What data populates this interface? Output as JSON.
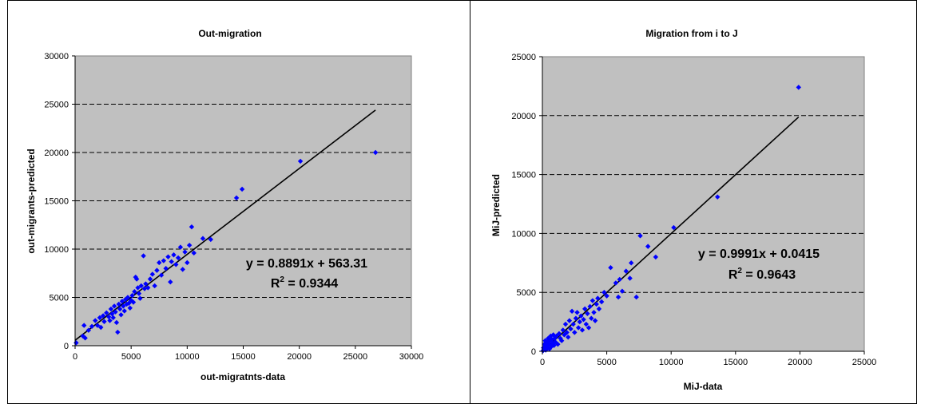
{
  "colors": {
    "plot_bg": "#c0c0c0",
    "point": "#0000ff",
    "trend": "#000000",
    "grid": "#000000"
  },
  "chart_data": [
    {
      "type": "scatter",
      "title": "Out-migration",
      "xlabel": "out-migratnts-data",
      "ylabel": "out-migrants-predicted",
      "xlim": [
        0,
        30000
      ],
      "ylim": [
        0,
        30000
      ],
      "xticks": [
        "0",
        "5000",
        "10000",
        "15000",
        "20000",
        "25000",
        "30000"
      ],
      "yticks": [
        "0",
        "5000",
        "10000",
        "15000",
        "20000",
        "25000",
        "30000"
      ],
      "grid": "horizontal-dashed",
      "trendline": {
        "slope": 0.8891,
        "intercept": 563.31,
        "x_range": [
          0,
          26800
        ]
      },
      "equation": "y = 0.8891x + 563.31",
      "r2_prefix": "R",
      "r2_sup": "2",
      "r2_value": " = 0.9344",
      "points": [
        [
          100,
          300
        ],
        [
          700,
          1000
        ],
        [
          900,
          800
        ],
        [
          800,
          2100
        ],
        [
          1200,
          1600
        ],
        [
          1500,
          2000
        ],
        [
          1800,
          2600
        ],
        [
          2000,
          2100
        ],
        [
          2200,
          2900
        ],
        [
          2300,
          1900
        ],
        [
          2500,
          3100
        ],
        [
          2600,
          2500
        ],
        [
          2800,
          3400
        ],
        [
          3000,
          3000
        ],
        [
          3100,
          2600
        ],
        [
          3200,
          3800
        ],
        [
          3300,
          3300
        ],
        [
          3400,
          2900
        ],
        [
          3500,
          4100
        ],
        [
          3600,
          3500
        ],
        [
          3700,
          2400
        ],
        [
          3800,
          1400
        ],
        [
          3900,
          4300
        ],
        [
          4000,
          3800
        ],
        [
          4100,
          3200
        ],
        [
          4200,
          4600
        ],
        [
          4300,
          4100
        ],
        [
          4400,
          3600
        ],
        [
          4500,
          4800
        ],
        [
          4600,
          4300
        ],
        [
          4700,
          5000
        ],
        [
          4800,
          4400
        ],
        [
          4900,
          3900
        ],
        [
          5000,
          4700
        ],
        [
          5100,
          5200
        ],
        [
          5200,
          4500
        ],
        [
          5300,
          5600
        ],
        [
          5400,
          7100
        ],
        [
          5500,
          6900
        ],
        [
          5600,
          6000
        ],
        [
          5700,
          5400
        ],
        [
          5800,
          4900
        ],
        [
          5900,
          6200
        ],
        [
          6100,
          9300
        ],
        [
          6200,
          5900
        ],
        [
          6300,
          6400
        ],
        [
          6500,
          6000
        ],
        [
          6700,
          6900
        ],
        [
          6900,
          7400
        ],
        [
          7100,
          6200
        ],
        [
          7300,
          7800
        ],
        [
          7500,
          8600
        ],
        [
          7700,
          7300
        ],
        [
          7900,
          8800
        ],
        [
          8100,
          8000
        ],
        [
          8300,
          9200
        ],
        [
          8500,
          6600
        ],
        [
          8600,
          8700
        ],
        [
          8800,
          9400
        ],
        [
          9000,
          8400
        ],
        [
          9200,
          9100
        ],
        [
          9400,
          10200
        ],
        [
          9600,
          7900
        ],
        [
          9800,
          9700
        ],
        [
          10000,
          8600
        ],
        [
          10200,
          10400
        ],
        [
          10400,
          12300
        ],
        [
          10600,
          9600
        ],
        [
          11400,
          11100
        ],
        [
          12100,
          11000
        ],
        [
          14400,
          15300
        ],
        [
          14900,
          16200
        ],
        [
          20100,
          19100
        ],
        [
          26800,
          20000
        ]
      ]
    },
    {
      "type": "scatter",
      "title": "Migration from i to J",
      "xlabel": "MiJ-data",
      "ylabel": "MiJ-predicted",
      "xlim": [
        0,
        25000
      ],
      "ylim": [
        0,
        25000
      ],
      "xticks": [
        "0",
        "5000",
        "10000",
        "15000",
        "20000",
        "25000"
      ],
      "yticks": [
        "0",
        "5000",
        "10000",
        "15000",
        "20000",
        "25000"
      ],
      "grid": "horizontal-dashed",
      "trendline": {
        "slope": 0.9991,
        "intercept": 0.0415,
        "x_range": [
          0,
          19900
        ]
      },
      "equation": "y = 0.9991x + 0.0415",
      "r2_prefix": "R",
      "r2_sup": "2",
      "r2_value": " = 0.9643",
      "points": [
        [
          50,
          50
        ],
        [
          80,
          300
        ],
        [
          120,
          150
        ],
        [
          150,
          600
        ],
        [
          200,
          250
        ],
        [
          220,
          900
        ],
        [
          260,
          100
        ],
        [
          300,
          500
        ],
        [
          350,
          800
        ],
        [
          400,
          300
        ],
        [
          450,
          1100
        ],
        [
          500,
          600
        ],
        [
          550,
          200
        ],
        [
          600,
          900
        ],
        [
          650,
          1300
        ],
        [
          700,
          400
        ],
        [
          750,
          1000
        ],
        [
          800,
          700
        ],
        [
          850,
          1400
        ],
        [
          900,
          500
        ],
        [
          950,
          1100
        ],
        [
          1000,
          800
        ],
        [
          1100,
          1300
        ],
        [
          1200,
          600
        ],
        [
          1300,
          1500
        ],
        [
          1400,
          1100
        ],
        [
          1500,
          900
        ],
        [
          1600,
          1800
        ],
        [
          1700,
          1400
        ],
        [
          1800,
          2300
        ],
        [
          1900,
          1600
        ],
        [
          2000,
          1200
        ],
        [
          2100,
          2600
        ],
        [
          2200,
          1900
        ],
        [
          2300,
          3400
        ],
        [
          2400,
          2300
        ],
        [
          2500,
          1600
        ],
        [
          2600,
          2800
        ],
        [
          2700,
          3300
        ],
        [
          2800,
          2000
        ],
        [
          2900,
          2500
        ],
        [
          3000,
          3000
        ],
        [
          3100,
          1800
        ],
        [
          3200,
          2700
        ],
        [
          3300,
          3600
        ],
        [
          3400,
          2300
        ],
        [
          3500,
          3200
        ],
        [
          3600,
          2000
        ],
        [
          3700,
          3800
        ],
        [
          3800,
          2800
        ],
        [
          3900,
          4300
        ],
        [
          4000,
          3300
        ],
        [
          4100,
          2600
        ],
        [
          4200,
          4000
        ],
        [
          4300,
          4500
        ],
        [
          4400,
          3600
        ],
        [
          4600,
          4200
        ],
        [
          4800,
          5000
        ],
        [
          5000,
          4700
        ],
        [
          5300,
          7100
        ],
        [
          5700,
          5800
        ],
        [
          5900,
          4600
        ],
        [
          6000,
          6100
        ],
        [
          6200,
          5100
        ],
        [
          6500,
          6800
        ],
        [
          6800,
          6200
        ],
        [
          6900,
          7500
        ],
        [
          7300,
          4600
        ],
        [
          7600,
          9800
        ],
        [
          8200,
          8900
        ],
        [
          8800,
          8000
        ],
        [
          10200,
          10500
        ],
        [
          13600,
          13100
        ],
        [
          19900,
          22400
        ]
      ]
    }
  ]
}
